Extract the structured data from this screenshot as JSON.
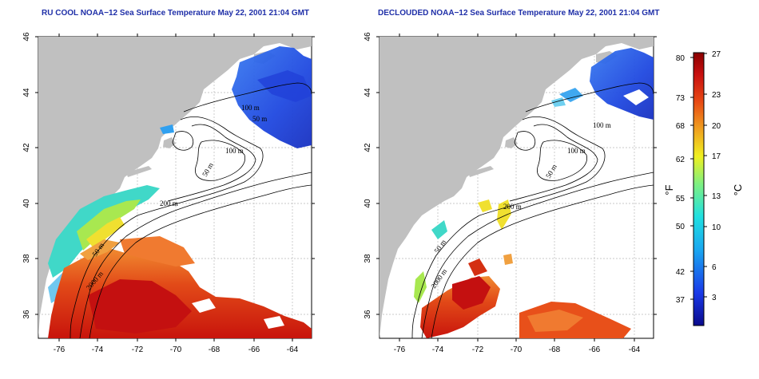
{
  "maps": [
    {
      "title": "RU COOL NOAA−12 Sea Surface Temperature May 22, 2001 21:04 GMT",
      "lat_ticks": [
        "46",
        "44",
        "42",
        "40",
        "38",
        "36"
      ],
      "lon_ticks": [
        "-76",
        "-74",
        "-72",
        "-70",
        "-68",
        "-66",
        "-64"
      ],
      "contour_labels": [
        "50 m",
        "100 m",
        "50 m",
        "100 m",
        "200 m",
        "50 m",
        "2000 m"
      ]
    },
    {
      "title": "DECLOUDED NOAA−12 Sea Surface Temperature May 22, 2001 21:04 GMT",
      "lat_ticks": [
        "46",
        "44",
        "42",
        "40",
        "38",
        "36"
      ],
      "lon_ticks": [
        "-76",
        "-74",
        "-72",
        "-70",
        "-68",
        "-66",
        "-64"
      ],
      "contour_labels": [
        "100 m",
        "100 m",
        "50 m",
        "200 m",
        "50 m",
        "2000 m"
      ]
    }
  ],
  "colorbar": {
    "f_label": "°F",
    "c_label": "°C",
    "f_ticks": [
      "80",
      "73",
      "68",
      "62",
      "55",
      "50",
      "42",
      "37"
    ],
    "c_ticks": [
      "27",
      "23",
      "20",
      "17",
      "13",
      "10",
      "6",
      "3"
    ]
  },
  "colors": {
    "title": "#1f2fa8",
    "land": "#c0c0c0",
    "warm": "#d42a10",
    "cold": "#2a4fe0"
  }
}
